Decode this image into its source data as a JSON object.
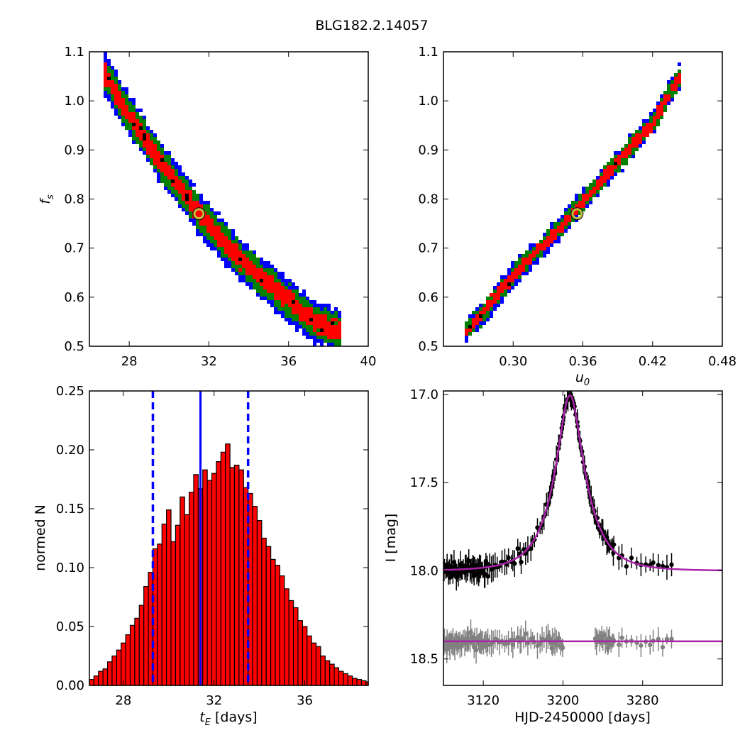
{
  "figure_title": "BLG182.2.14057",
  "colors": {
    "blue": "#0000ff",
    "green": "#008000",
    "red": "#ff0000",
    "black": "#000000",
    "bar_fill": "#ff0000",
    "best_fit_marker": "#bfbf40",
    "model_curve": "#aa22aa",
    "secondary_data": "#808080"
  },
  "chart_data": [
    {
      "id": "tE-fs",
      "type": "heatmap",
      "xlabel": "",
      "ylabel": "f_s",
      "xlim": [
        26,
        40
      ],
      "ylim": [
        0.5,
        1.1
      ],
      "xticks": [
        28,
        32,
        36,
        40
      ],
      "yticks": [
        0.5,
        0.6,
        0.7,
        0.8,
        0.9,
        1.0,
        1.1
      ],
      "grid": false,
      "levels": [
        "1-sigma (red)",
        "2-sigma (green)",
        "3-sigma (blue)"
      ],
      "ridge": [
        [
          26.7,
          1.06
        ],
        [
          28.0,
          0.97
        ],
        [
          29.5,
          0.88
        ],
        [
          31.5,
          0.77
        ],
        [
          33.5,
          0.68
        ],
        [
          35.5,
          0.61
        ],
        [
          37.3,
          0.55
        ],
        [
          38.6,
          0.53
        ]
      ],
      "widths": {
        "red": 0.018,
        "green": 0.032,
        "blue": 0.042
      },
      "best_fit": [
        31.5,
        0.77
      ]
    },
    {
      "id": "u0-fs",
      "type": "heatmap",
      "xlabel": "u_0",
      "ylabel": "",
      "xlim": [
        0.24,
        0.48
      ],
      "ylim": [
        0.5,
        1.1
      ],
      "xticks": [
        0.3,
        0.36,
        0.42,
        0.48
      ],
      "yticks": [
        0.5,
        0.6,
        0.7,
        0.8,
        0.9,
        1.0,
        1.1
      ],
      "grid": false,
      "levels": [
        "1-sigma (red)",
        "2-sigma (green)",
        "3-sigma (blue)"
      ],
      "ridge": [
        [
          0.257,
          0.525
        ],
        [
          0.27,
          0.555
        ],
        [
          0.3,
          0.645
        ],
        [
          0.33,
          0.715
        ],
        [
          0.36,
          0.795
        ],
        [
          0.39,
          0.875
        ],
        [
          0.42,
          0.955
        ],
        [
          0.445,
          1.055
        ]
      ],
      "widths": {
        "red": 0.011,
        "green": 0.018,
        "blue": 0.024
      },
      "best_fit": [
        0.355,
        0.77
      ]
    },
    {
      "id": "tE-hist",
      "type": "bar",
      "xlabel": "t_E [days]",
      "ylabel": "normed N",
      "xlim": [
        26.5,
        38.8
      ],
      "ylim": [
        0.0,
        0.25
      ],
      "xticks": [
        28,
        32,
        36
      ],
      "yticks": [
        0.0,
        0.05,
        0.1,
        0.15,
        0.2,
        0.25
      ],
      "grid": false,
      "bin_start": 26.5,
      "bin_width": 0.2,
      "values": [
        0.005,
        0.008,
        0.012,
        0.014,
        0.02,
        0.025,
        0.03,
        0.036,
        0.043,
        0.051,
        0.057,
        0.068,
        0.084,
        0.096,
        0.116,
        0.12,
        0.137,
        0.149,
        0.122,
        0.136,
        0.16,
        0.145,
        0.164,
        0.179,
        0.167,
        0.183,
        0.174,
        0.18,
        0.19,
        0.198,
        0.205,
        0.185,
        0.187,
        0.183,
        0.168,
        0.163,
        0.152,
        0.14,
        0.125,
        0.118,
        0.107,
        0.102,
        0.093,
        0.082,
        0.072,
        0.066,
        0.055,
        0.05,
        0.042,
        0.036,
        0.033,
        0.025,
        0.021,
        0.018,
        0.015,
        0.012,
        0.01,
        0.008,
        0.006,
        0.005,
        0.004,
        0.003,
        0.002,
        0.002,
        0.001,
        0.001,
        0.0,
        0.001,
        0.0,
        0.001,
        0.0
      ],
      "median_line": 31.4,
      "interval_lines": [
        29.3,
        33.5
      ]
    },
    {
      "id": "lightcurve",
      "type": "scatter",
      "xlabel": "HJD-2450000 [days]",
      "ylabel": "I [mag]",
      "xlim": [
        3080,
        3360
      ],
      "ylim": [
        18.65,
        16.98
      ],
      "xticks": [
        3120,
        3200,
        3280
      ],
      "yticks": [
        17.0,
        17.5,
        18.0,
        18.5
      ],
      "ytick_labels": [
        "17.0",
        "17.5",
        "18.0",
        "18.5"
      ],
      "grid": false,
      "model": {
        "t0": 3207,
        "tE": 31.4,
        "u0": 0.355,
        "fs": 0.77,
        "baseline": 18.0
      },
      "secondary_baseline": 18.4,
      "series": [
        {
          "color": "black",
          "t0": 3207,
          "tE": 31.4,
          "u0": 0.355,
          "fs": 0.77,
          "baseline": 18.0
        },
        {
          "color": "gray",
          "baseline": 18.4
        }
      ]
    }
  ]
}
